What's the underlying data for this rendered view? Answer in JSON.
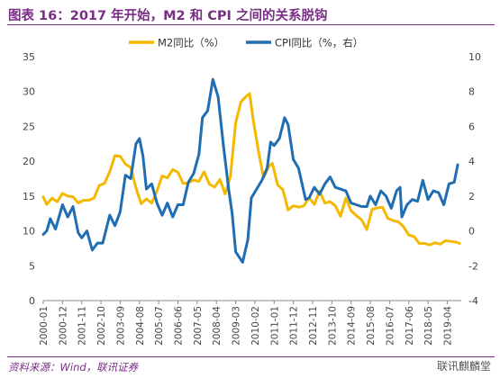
{
  "header": {
    "title": "图表 16：2017 年开始，M2 和 CPI 之间的关系脱钩"
  },
  "footer": {
    "source": "资料来源：Wind，联讯证券",
    "watermark": "联讯麒麟堂"
  },
  "colors": {
    "m2": "#f5b800",
    "cpi": "#1f6db3",
    "accent": "#7a2e86"
  },
  "chart_data": {
    "type": "line",
    "title": "",
    "xlabel": "",
    "ylabel": "",
    "x_ticks": [
      "2000-01",
      "2000-12",
      "2001-11",
      "2002-10",
      "2003-09",
      "2004-08",
      "2005-07",
      "2006-06",
      "2007-05",
      "2008-04",
      "2009-03",
      "2010-02",
      "2011-01",
      "2011-12",
      "2012-11",
      "2013-10",
      "2014-09",
      "2015-08",
      "2016-07",
      "2017-06",
      "2018-05",
      "2019-04"
    ],
    "y_left": {
      "range": [
        0,
        35
      ],
      "ticks": [
        "0",
        "5",
        "10",
        "15",
        "20",
        "25",
        "30",
        "35"
      ]
    },
    "y_right": {
      "range": [
        -4,
        10
      ],
      "ticks": [
        "-4",
        "-2",
        "0",
        "2",
        "4",
        "6",
        "8",
        "10"
      ]
    },
    "grid": false,
    "legend": "top",
    "series": [
      {
        "name": "M2同比（%）",
        "axis": "left",
        "points": [
          [
            "2000-01",
            14.9
          ],
          [
            "2000-03",
            13.8
          ],
          [
            "2000-06",
            14.7
          ],
          [
            "2000-09",
            14.2
          ],
          [
            "2000-12",
            15.4
          ],
          [
            "2001-03",
            15.0
          ],
          [
            "2001-06",
            14.9
          ],
          [
            "2001-09",
            14.0
          ],
          [
            "2001-12",
            14.4
          ],
          [
            "2002-03",
            14.4
          ],
          [
            "2002-06",
            14.7
          ],
          [
            "2002-09",
            16.5
          ],
          [
            "2002-12",
            16.8
          ],
          [
            "2003-03",
            18.5
          ],
          [
            "2003-06",
            20.8
          ],
          [
            "2003-09",
            20.7
          ],
          [
            "2003-12",
            19.6
          ],
          [
            "2004-03",
            19.1
          ],
          [
            "2004-06",
            16.2
          ],
          [
            "2004-09",
            13.9
          ],
          [
            "2004-12",
            14.6
          ],
          [
            "2005-03",
            14.0
          ],
          [
            "2005-06",
            15.7
          ],
          [
            "2005-09",
            17.9
          ],
          [
            "2005-12",
            17.6
          ],
          [
            "2006-03",
            18.8
          ],
          [
            "2006-06",
            18.4
          ],
          [
            "2006-09",
            16.8
          ],
          [
            "2006-12",
            16.9
          ],
          [
            "2007-03",
            17.3
          ],
          [
            "2007-06",
            17.1
          ],
          [
            "2007-09",
            18.5
          ],
          [
            "2007-12",
            16.7
          ],
          [
            "2008-03",
            16.3
          ],
          [
            "2008-06",
            17.4
          ],
          [
            "2008-09",
            15.3
          ],
          [
            "2008-12",
            17.8
          ],
          [
            "2009-03",
            25.5
          ],
          [
            "2009-06",
            28.5
          ],
          [
            "2009-09",
            29.3
          ],
          [
            "2009-11",
            29.7
          ],
          [
            "2010-01",
            26.0
          ],
          [
            "2010-04",
            21.5
          ],
          [
            "2010-07",
            17.6
          ],
          [
            "2010-10",
            19.3
          ],
          [
            "2010-12",
            19.7
          ],
          [
            "2011-03",
            16.6
          ],
          [
            "2011-06",
            15.9
          ],
          [
            "2011-09",
            13.0
          ],
          [
            "2011-12",
            13.6
          ],
          [
            "2012-03",
            13.4
          ],
          [
            "2012-06",
            13.6
          ],
          [
            "2012-09",
            14.8
          ],
          [
            "2012-12",
            13.8
          ],
          [
            "2013-03",
            15.7
          ],
          [
            "2013-06",
            14.0
          ],
          [
            "2013-09",
            14.2
          ],
          [
            "2013-12",
            13.6
          ],
          [
            "2014-03",
            12.1
          ],
          [
            "2014-06",
            14.7
          ],
          [
            "2014-09",
            12.9
          ],
          [
            "2014-12",
            12.2
          ],
          [
            "2015-03",
            11.6
          ],
          [
            "2015-06",
            10.2
          ],
          [
            "2015-09",
            13.1
          ],
          [
            "2015-12",
            13.3
          ],
          [
            "2016-03",
            13.4
          ],
          [
            "2016-06",
            11.8
          ],
          [
            "2016-09",
            11.5
          ],
          [
            "2016-12",
            11.3
          ],
          [
            "2017-03",
            10.6
          ],
          [
            "2017-06",
            9.4
          ],
          [
            "2017-09",
            9.2
          ],
          [
            "2017-12",
            8.2
          ],
          [
            "2018-03",
            8.2
          ],
          [
            "2018-06",
            8.0
          ],
          [
            "2018-09",
            8.3
          ],
          [
            "2018-12",
            8.1
          ],
          [
            "2019-03",
            8.6
          ],
          [
            "2019-06",
            8.5
          ],
          [
            "2019-09",
            8.4
          ],
          [
            "2019-11",
            8.2
          ]
        ]
      },
      {
        "name": "CPI同比（%，右）",
        "axis": "right",
        "points": [
          [
            "2000-01",
            -0.2
          ],
          [
            "2000-03",
            0.0
          ],
          [
            "2000-05",
            0.7
          ],
          [
            "2000-08",
            0.1
          ],
          [
            "2000-12",
            1.5
          ],
          [
            "2001-03",
            0.8
          ],
          [
            "2001-06",
            1.4
          ],
          [
            "2001-09",
            -0.1
          ],
          [
            "2001-11",
            -0.4
          ],
          [
            "2002-02",
            0.0
          ],
          [
            "2002-05",
            -1.1
          ],
          [
            "2002-08",
            -0.7
          ],
          [
            "2002-11",
            -0.7
          ],
          [
            "2003-03",
            0.9
          ],
          [
            "2003-06",
            0.3
          ],
          [
            "2003-09",
            1.1
          ],
          [
            "2003-12",
            3.2
          ],
          [
            "2004-03",
            3.0
          ],
          [
            "2004-06",
            5.0
          ],
          [
            "2004-08",
            5.3
          ],
          [
            "2004-10",
            4.3
          ],
          [
            "2004-12",
            2.4
          ],
          [
            "2005-03",
            2.7
          ],
          [
            "2005-06",
            1.6
          ],
          [
            "2005-09",
            0.9
          ],
          [
            "2005-12",
            1.6
          ],
          [
            "2006-03",
            0.8
          ],
          [
            "2006-06",
            1.5
          ],
          [
            "2006-09",
            1.5
          ],
          [
            "2006-12",
            2.8
          ],
          [
            "2007-03",
            3.3
          ],
          [
            "2007-06",
            4.4
          ],
          [
            "2007-08",
            6.5
          ],
          [
            "2007-11",
            6.9
          ],
          [
            "2008-02",
            8.7
          ],
          [
            "2008-05",
            7.7
          ],
          [
            "2008-08",
            4.9
          ],
          [
            "2008-11",
            2.4
          ],
          [
            "2009-01",
            1.0
          ],
          [
            "2009-03",
            -1.2
          ],
          [
            "2009-07",
            -1.8
          ],
          [
            "2009-10",
            -0.5
          ],
          [
            "2009-12",
            1.9
          ],
          [
            "2010-03",
            2.4
          ],
          [
            "2010-06",
            2.9
          ],
          [
            "2010-09",
            3.6
          ],
          [
            "2010-11",
            5.1
          ],
          [
            "2011-01",
            4.9
          ],
          [
            "2011-04",
            5.3
          ],
          [
            "2011-07",
            6.5
          ],
          [
            "2011-09",
            6.1
          ],
          [
            "2011-12",
            4.1
          ],
          [
            "2012-03",
            3.6
          ],
          [
            "2012-07",
            1.8
          ],
          [
            "2012-09",
            1.9
          ],
          [
            "2012-12",
            2.5
          ],
          [
            "2013-03",
            2.1
          ],
          [
            "2013-06",
            2.7
          ],
          [
            "2013-09",
            3.1
          ],
          [
            "2013-12",
            2.5
          ],
          [
            "2014-03",
            2.4
          ],
          [
            "2014-06",
            2.3
          ],
          [
            "2014-09",
            1.6
          ],
          [
            "2014-12",
            1.5
          ],
          [
            "2015-03",
            1.4
          ],
          [
            "2015-06",
            1.4
          ],
          [
            "2015-08",
            2.0
          ],
          [
            "2015-11",
            1.5
          ],
          [
            "2016-02",
            2.3
          ],
          [
            "2016-05",
            2.0
          ],
          [
            "2016-08",
            1.3
          ],
          [
            "2016-11",
            2.3
          ],
          [
            "2017-01",
            2.5
          ],
          [
            "2017-02",
            0.8
          ],
          [
            "2017-05",
            1.5
          ],
          [
            "2017-08",
            1.8
          ],
          [
            "2017-11",
            1.7
          ],
          [
            "2018-02",
            2.9
          ],
          [
            "2018-05",
            1.8
          ],
          [
            "2018-08",
            2.3
          ],
          [
            "2018-11",
            2.2
          ],
          [
            "2019-02",
            1.5
          ],
          [
            "2019-05",
            2.7
          ],
          [
            "2019-08",
            2.8
          ],
          [
            "2019-10",
            3.8
          ]
        ]
      }
    ]
  }
}
